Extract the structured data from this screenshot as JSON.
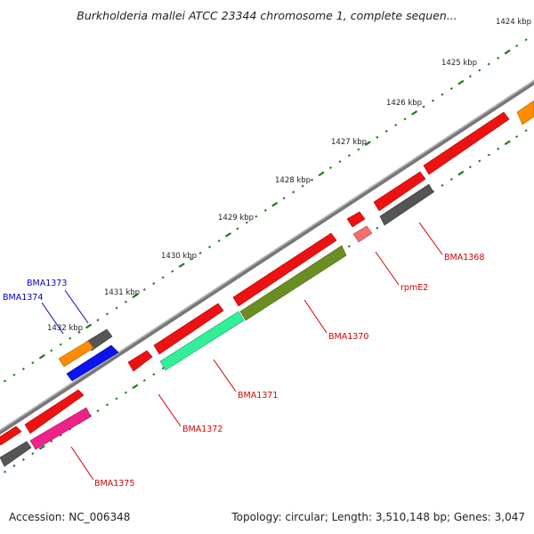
{
  "title": "Burkholderia mallei ATCC 23344 chromosome 1, complete sequen...",
  "footer": {
    "accession": "Accession: NC_006348",
    "summary": "Topology: circular; Length: 3,510,148 bp; Genes: 3,047"
  },
  "colors": {
    "backbone": "#8a8a8a",
    "tick": "#1f7a1f",
    "label_red": "#d40000",
    "label_blue": "#0000cc"
  },
  "kbp_ticks": [
    {
      "label": "1424 kbp"
    },
    {
      "label": "1425 kbp"
    },
    {
      "label": "1426 kbp"
    },
    {
      "label": "1427 kbp"
    },
    {
      "label": "1428 kbp"
    },
    {
      "label": "1429 kbp"
    },
    {
      "label": "1430 kbp"
    },
    {
      "label": "1431 kbp"
    },
    {
      "label": "1432 kbp"
    }
  ],
  "gene_labels": [
    {
      "name": "BMA1368",
      "color": "#d40000"
    },
    {
      "name": "rpmE2",
      "color": "#d40000"
    },
    {
      "name": "BMA1370",
      "color": "#d40000"
    },
    {
      "name": "BMA1371",
      "color": "#d40000"
    },
    {
      "name": "BMA1372",
      "color": "#d40000"
    },
    {
      "name": "BMA1375",
      "color": "#d40000"
    },
    {
      "name": "BMA1373",
      "color": "#0000cc"
    },
    {
      "name": "BMA1374",
      "color": "#0000cc"
    }
  ]
}
